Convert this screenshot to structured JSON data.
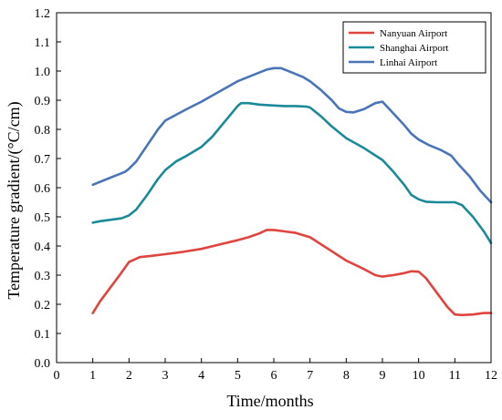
{
  "chart_data": {
    "type": "line",
    "xlabel": "Time/months",
    "ylabel": "Temperature gradient/(°C/cm)",
    "xlim": [
      0,
      12
    ],
    "ylim": [
      0,
      1.2
    ],
    "x_ticks": [
      "0",
      "1",
      "2",
      "3",
      "4",
      "5",
      "6",
      "7",
      "8",
      "9",
      "10",
      "11",
      "12"
    ],
    "y_ticks": [
      "0.0",
      "0.1",
      "0.2",
      "0.3",
      "0.4",
      "0.5",
      "0.6",
      "0.7",
      "0.8",
      "0.9",
      "1.0",
      "1.1",
      "1.2"
    ],
    "grid": false,
    "legend_position": "top-right",
    "series": [
      {
        "name": "Nanyuan Airport",
        "color": "#e0443e",
        "x": [
          1,
          1.2,
          1.5,
          1.8,
          2,
          2.3,
          2.6,
          3,
          3.5,
          4,
          4.5,
          5,
          5.3,
          5.6,
          5.8,
          6,
          6.3,
          6.6,
          7,
          7.5,
          8,
          8.5,
          8.8,
          9,
          9.3,
          9.6,
          9.8,
          10,
          10.2,
          10.5,
          10.8,
          11,
          11.2,
          11.5,
          11.8,
          12
        ],
        "y": [
          0.17,
          0.21,
          0.26,
          0.31,
          0.345,
          0.362,
          0.366,
          0.372,
          0.38,
          0.39,
          0.405,
          0.42,
          0.43,
          0.443,
          0.455,
          0.455,
          0.45,
          0.445,
          0.43,
          0.39,
          0.35,
          0.32,
          0.3,
          0.295,
          0.3,
          0.307,
          0.313,
          0.312,
          0.29,
          0.24,
          0.19,
          0.165,
          0.163,
          0.165,
          0.17,
          0.17
        ]
      },
      {
        "name": "Shanghai Airport",
        "color": "#1b8a98",
        "x": [
          1,
          1.2,
          1.5,
          1.8,
          2,
          2.2,
          2.5,
          2.8,
          3,
          3.3,
          3.6,
          4,
          4.3,
          4.6,
          4.9,
          5,
          5.1,
          5.3,
          5.6,
          6,
          6.3,
          6.6,
          6.9,
          7,
          7.3,
          7.6,
          8,
          8.5,
          9,
          9.3,
          9.6,
          9.8,
          10,
          10.2,
          10.5,
          10.8,
          11,
          11.2,
          11.5,
          11.8,
          12
        ],
        "y": [
          0.48,
          0.485,
          0.49,
          0.495,
          0.505,
          0.525,
          0.575,
          0.63,
          0.66,
          0.69,
          0.71,
          0.74,
          0.775,
          0.82,
          0.865,
          0.88,
          0.89,
          0.89,
          0.885,
          0.882,
          0.88,
          0.88,
          0.878,
          0.875,
          0.845,
          0.81,
          0.77,
          0.735,
          0.695,
          0.655,
          0.61,
          0.575,
          0.56,
          0.552,
          0.55,
          0.55,
          0.55,
          0.54,
          0.5,
          0.45,
          0.41
        ]
      },
      {
        "name": "Linhai Airport",
        "color": "#4a74b8",
        "x": [
          1,
          1.3,
          1.6,
          1.9,
          2,
          2.2,
          2.5,
          2.8,
          3,
          3.3,
          3.6,
          4,
          4.5,
          5,
          5.5,
          5.8,
          6,
          6.2,
          6.5,
          6.8,
          7,
          7.3,
          7.6,
          7.8,
          8,
          8.2,
          8.5,
          8.8,
          9,
          9.3,
          9.6,
          9.8,
          10,
          10.3,
          10.6,
          10.9,
          11.1,
          11.4,
          11.7,
          12
        ],
        "y": [
          0.61,
          0.625,
          0.64,
          0.655,
          0.665,
          0.69,
          0.745,
          0.8,
          0.83,
          0.85,
          0.87,
          0.895,
          0.93,
          0.965,
          0.99,
          1.005,
          1.01,
          1.01,
          0.995,
          0.98,
          0.965,
          0.935,
          0.9,
          0.872,
          0.86,
          0.858,
          0.87,
          0.89,
          0.895,
          0.855,
          0.815,
          0.785,
          0.765,
          0.745,
          0.73,
          0.71,
          0.68,
          0.64,
          0.59,
          0.55
        ]
      }
    ]
  }
}
